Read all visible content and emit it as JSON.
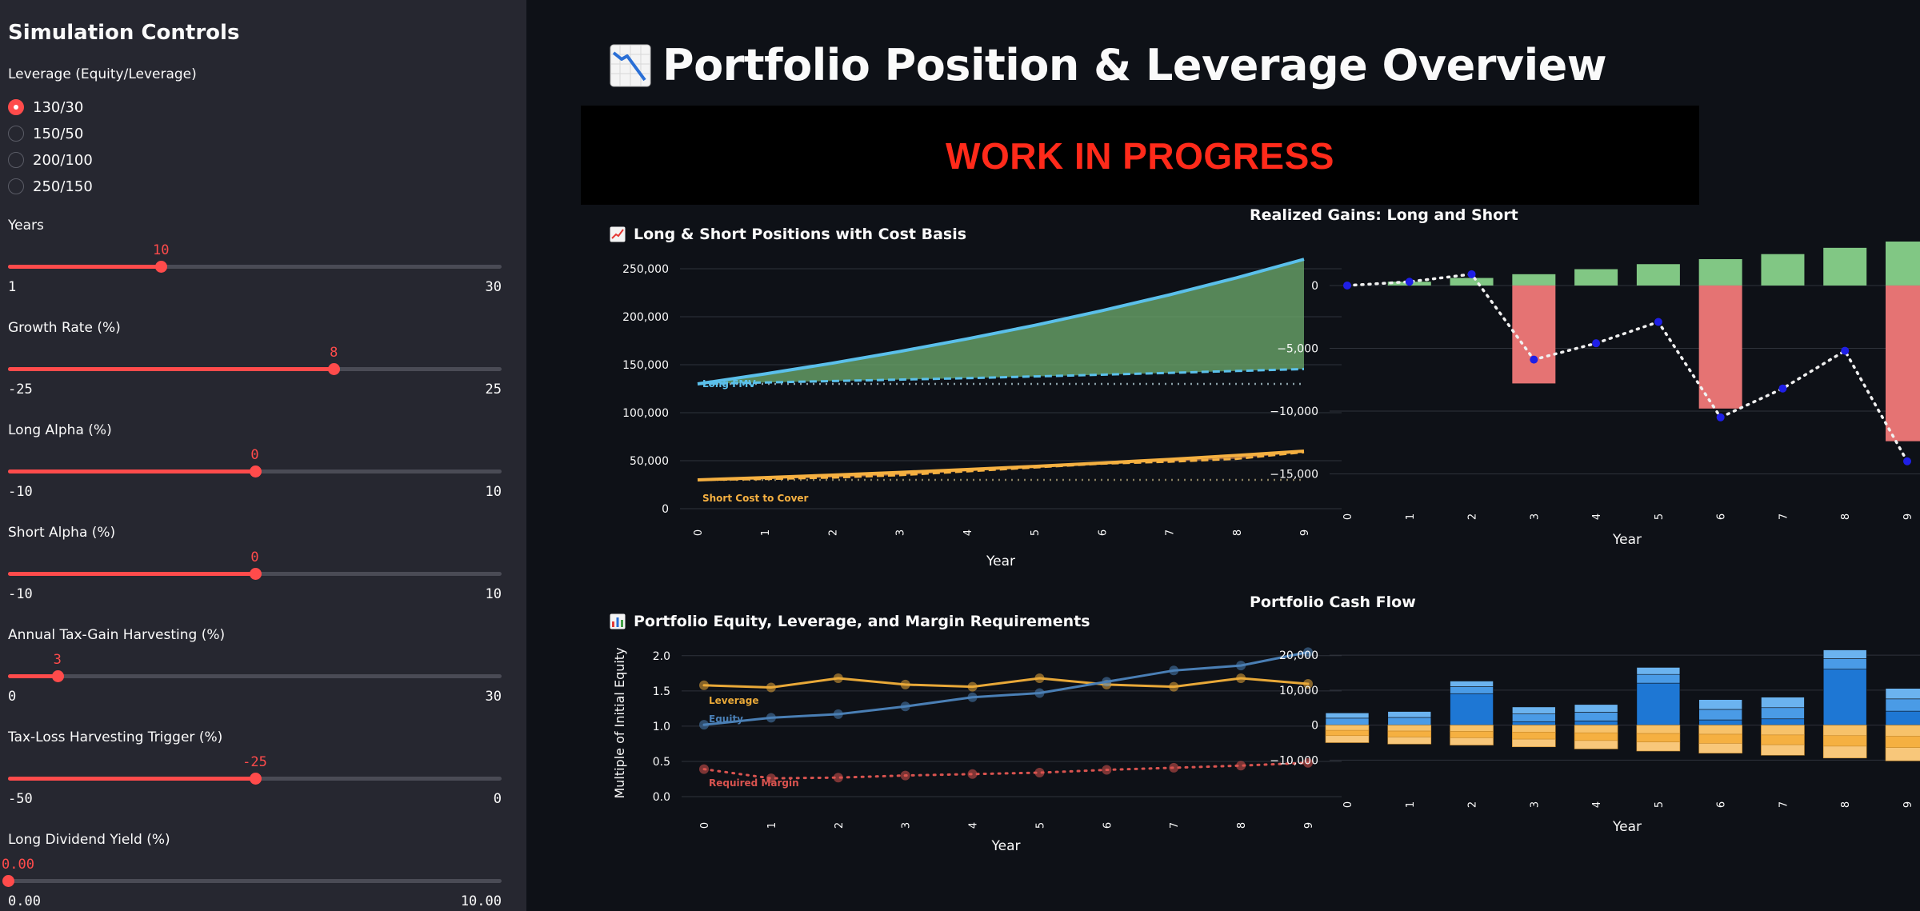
{
  "sidebar": {
    "title": "Simulation Controls",
    "leverage_label": "Leverage (Equity/Leverage)",
    "leverage_options": [
      "130/30",
      "150/50",
      "200/100",
      "250/150"
    ],
    "leverage_selected": 0,
    "sliders": [
      {
        "label": "Years",
        "value": "10",
        "min": "1",
        "max": "30",
        "fraction": 0.31
      },
      {
        "label": "Growth Rate (%)",
        "value": "8",
        "min": "-25",
        "max": "25",
        "fraction": 0.66
      },
      {
        "label": "Long Alpha (%)",
        "value": "0",
        "min": "-10",
        "max": "10",
        "fraction": 0.5
      },
      {
        "label": "Short Alpha (%)",
        "value": "0",
        "min": "-10",
        "max": "10",
        "fraction": 0.5
      },
      {
        "label": "Annual Tax-Gain Harvesting (%)",
        "value": "3",
        "min": "0",
        "max": "30",
        "fraction": 0.1
      },
      {
        "label": "Tax-Loss Harvesting Trigger (%)",
        "value": "-25",
        "min": "-50",
        "max": "0",
        "fraction": 0.5
      },
      {
        "label": "Long Dividend Yield (%)",
        "value": "0.00",
        "min": "0.00",
        "max": "10.00",
        "fraction": 0.0
      }
    ]
  },
  "main": {
    "title": "Portfolio Position & Leverage Overview",
    "title_icon": "chart-decreasing-icon",
    "banner": "WORK IN PROGRESS"
  },
  "colors": {
    "accent": "#ff4b4b",
    "long": "#5bc0eb",
    "short": "#f5b041",
    "gain": "#81c784",
    "loss": "#e57373",
    "equity": "#4a7fb5",
    "leverage": "#e8a838",
    "margin": "#d9534f"
  },
  "chart_data": [
    {
      "id": "positions",
      "type": "area",
      "title": "Long & Short Positions with Cost Basis",
      "title_icon": "chart-increasing-icon",
      "xlabel": "Year",
      "x": [
        0,
        1,
        2,
        3,
        4,
        5,
        6,
        7,
        8,
        9
      ],
      "ylim": [
        0,
        260000
      ],
      "yticks": [
        0,
        50000,
        100000,
        150000,
        200000,
        250000
      ],
      "ytick_labels": [
        "0",
        "50,000",
        "100,000",
        "150,000",
        "200,000",
        "250,000"
      ],
      "series": [
        {
          "name": "Long FMV",
          "values": [
            130000,
            140400,
            151600,
            163800,
            176900,
            191000,
            206300,
            222800,
            240600,
            259900
          ]
        },
        {
          "values": [
            130000,
            131500,
            133000,
            134500,
            136000,
            137800,
            139600,
            141500,
            143500,
            145500
          ]
        },
        {
          "values": [
            130000,
            130000,
            130000,
            130000,
            130000,
            130000,
            130000,
            130000,
            130000,
            130000
          ]
        },
        {
          "name": "Short Cost to Cover",
          "values": [
            30000,
            32400,
            35000,
            37800,
            40800,
            44100,
            47600,
            51400,
            55500,
            60000
          ]
        },
        {
          "values": [
            30000,
            31000,
            32500,
            35000,
            39000,
            43000,
            47000,
            49000,
            52000,
            59000
          ]
        },
        {
          "values": [
            30000,
            30000,
            30000,
            30000,
            30000,
            30000,
            30000,
            30000,
            30000,
            30000
          ]
        }
      ]
    },
    {
      "id": "gains",
      "type": "bar",
      "title": "Realized Gains: Long and Short",
      "xlabel": "Year",
      "categories": [
        "0",
        "1",
        "2",
        "3",
        "4",
        "5",
        "6",
        "7",
        "8",
        "9"
      ],
      "ylim": [
        -16500,
        3500
      ],
      "yticks": [
        0,
        -5000,
        -10000,
        -15000
      ],
      "ytick_labels": [
        "0",
        "−5,000",
        "−10,000",
        "−15,000"
      ],
      "series": [
        {
          "values": [
            0,
            300,
            600,
            900,
            1300,
            1700,
            2100,
            2500,
            3000,
            3500
          ]
        },
        {
          "values": [
            0,
            0,
            0,
            -7800,
            0,
            0,
            -9800,
            0,
            0,
            -12400
          ]
        },
        {
          "values": [
            0,
            300,
            900,
            -5900,
            -4600,
            -2900,
            -10500,
            -8200,
            -5200,
            -14000
          ]
        }
      ]
    },
    {
      "id": "equity",
      "type": "line",
      "title": "Portfolio Equity, Leverage, and Margin Requirements",
      "title_icon": "bar-chart-icon",
      "xlabel": "Year",
      "ylabel": "Multiple of Initial Equity",
      "x": [
        0,
        1,
        2,
        3,
        4,
        5,
        6,
        7,
        8,
        9
      ],
      "ylim": [
        0,
        2.1
      ],
      "yticks": [
        0,
        0.5,
        1.0,
        1.5,
        2.0
      ],
      "ytick_labels": [
        "0.0",
        "0.5",
        "1.0",
        "1.5",
        "2.0"
      ],
      "series": [
        {
          "name": "Leverage",
          "values": [
            1.58,
            1.55,
            1.68,
            1.59,
            1.56,
            1.68,
            1.59,
            1.56,
            1.68,
            1.6
          ]
        },
        {
          "name": "Equity",
          "values": [
            1.02,
            1.12,
            1.17,
            1.28,
            1.41,
            1.47,
            1.63,
            1.79,
            1.86,
            2.05
          ]
        },
        {
          "name": "Required Margin",
          "values": [
            0.39,
            0.26,
            0.27,
            0.3,
            0.32,
            0.34,
            0.38,
            0.41,
            0.44,
            0.48
          ]
        }
      ]
    },
    {
      "id": "cashflow",
      "type": "bar",
      "title": "Portfolio Cash Flow",
      "xlabel": "Year",
      "categories": [
        "0",
        "1",
        "2",
        "3",
        "4",
        "5",
        "6",
        "7",
        "8",
        "9"
      ],
      "ylim": [
        -13000,
        23000
      ],
      "yticks": [
        20000,
        10000,
        0,
        -10000
      ],
      "ytick_labels": [
        "20,000",
        "10,000",
        "0",
        "−10,000"
      ],
      "series": [
        {
          "values": [
            0,
            0,
            9000,
            1000,
            1200,
            12000,
            1500,
            1800,
            16000,
            4000
          ]
        },
        {
          "values": [
            2000,
            2200,
            2000,
            2200,
            2500,
            2500,
            3000,
            3200,
            3000,
            3500
          ]
        },
        {
          "values": [
            1500,
            1700,
            1600,
            2000,
            2200,
            2000,
            2800,
            3000,
            2500,
            3000
          ]
        },
        {
          "values": [
            -1500,
            -1700,
            -1800,
            -2000,
            -2200,
            -2400,
            -2600,
            -2800,
            -3000,
            -3200
          ]
        },
        {
          "values": [
            -1500,
            -1700,
            -1800,
            -2000,
            -2200,
            -2400,
            -2600,
            -2800,
            -3000,
            -3200
          ]
        },
        {
          "values": [
            -2000,
            -2000,
            -2100,
            -2200,
            -2400,
            -2600,
            -2800,
            -3000,
            -3400,
            -3800
          ]
        }
      ]
    }
  ]
}
